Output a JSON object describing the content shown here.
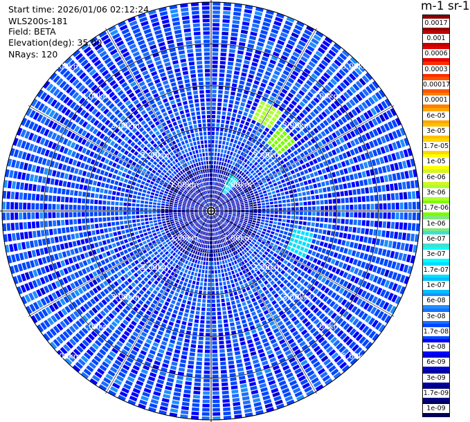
{
  "header": {
    "start_time": "Start time: 2026/01/06 02:12:24",
    "instrument": "WLS200s-181",
    "field": "Field: BETA",
    "elevation": "Elevation(deg): 35.00",
    "nrays": "NRays: 120"
  },
  "colorbar": {
    "title": "m-1 sr-1",
    "labels": [
      "0.0017",
      "0.001",
      "0.0006",
      "0.0003",
      "0.00017",
      "0.0001",
      "6e-05",
      "3e-05",
      "1.7e-05",
      "1e-05",
      "6e-06",
      "3e-06",
      "1.7e-06",
      "1e-06",
      "6e-07",
      "3e-07",
      "1.7e-07",
      "1e-07",
      "6e-08",
      "3e-08",
      "1.7e-08",
      "1e-08",
      "6e-09",
      "3e-09",
      "1.7e-09",
      "1e-09"
    ],
    "colors": [
      "#8b0000",
      "#c00000",
      "#e60000",
      "#ff2a00",
      "#ff5500",
      "#ff7f00",
      "#ffa500",
      "#ffbf00",
      "#ffd700",
      "#ffff00",
      "#d7f522",
      "#adff2f",
      "#7cfc00",
      "#7fe87f",
      "#40e0d0",
      "#00ffff",
      "#00dfff",
      "#00bfff",
      "#1e90ff",
      "#1c6fff",
      "#0047ff",
      "#0000ff",
      "#0000cd",
      "#0000a0",
      "#000080",
      "#00005a"
    ]
  },
  "chart_data": {
    "type": "heatmap",
    "projection": "polar-ppi",
    "field": "BETA",
    "elevation_deg": 35.0,
    "nrays": 120,
    "range_rings_km": [
      1,
      2,
      3,
      4,
      5
    ],
    "ring_labels": [
      "1.00km",
      "2.00km",
      "3.00km",
      "4.00km",
      "5.00km"
    ],
    "ring_labels_printed": {
      "1": "1.00km",
      "2": "2.00km",
      "3": "3.00km",
      "4": [
        "4.00km",
        "4.00km",
        "4.00km",
        "4.00km"
      ],
      "5": "5.00km"
    },
    "max_range_km": 5.0,
    "dominant_level": "1e-08",
    "near_range_level": "3e-09",
    "patches": [
      {
        "azimuth_deg": 30,
        "range_km": 2.6,
        "level": "3e-06"
      },
      {
        "azimuth_deg": 45,
        "range_km": 2.3,
        "level": "1.7e-06"
      },
      {
        "azimuth_deg": 110,
        "range_km": 2.2,
        "level": "1.7e-07"
      },
      {
        "azimuth_deg": 35,
        "range_km": 0.7,
        "level": "1.7e-07"
      }
    ],
    "grid": true
  }
}
